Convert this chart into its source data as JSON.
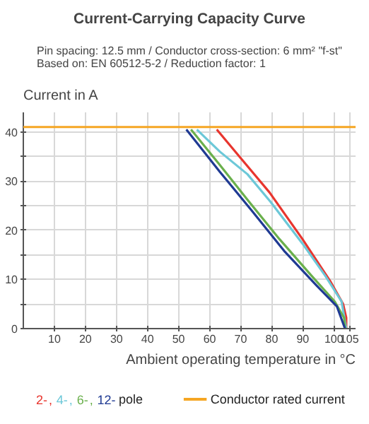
{
  "chart_data": {
    "type": "line",
    "title": "Current-Carrying Capacity Curve",
    "subtitle": "Pin spacing: 12.5 mm / Conductor cross-section: 6 mm² \"f-st\"\nBased on: EN 60512-5-2 / Reduction factor: 1",
    "xlabel": "Ambient operating temperature in °C",
    "ylabel": "Current in A",
    "annotations": [
      "pole",
      ","
    ],
    "series": [
      {
        "name": "2-",
        "color": "#e8352e",
        "x": [
          62.3,
          69.2,
          79.3,
          89.9,
          98.8,
          103,
          104,
          104
        ],
        "values": [
          40.5,
          35.3,
          27.7,
          18.2,
          9.7,
          5,
          2.2,
          0
        ]
      },
      {
        "name": "4-",
        "color": "#6cc8d8",
        "x": [
          55.9,
          63.3,
          72.2,
          79.6,
          89.9,
          97.3,
          102.5,
          104
        ],
        "values": [
          40.5,
          36,
          31.4,
          25.8,
          17.3,
          10.7,
          5.5,
          0
        ]
      },
      {
        "name": "6-",
        "color": "#6ab04c",
        "x": [
          54,
          63.3,
          72.2,
          82.5,
          92.9,
          100.3,
          103.3,
          103.6
        ],
        "values": [
          40.5,
          33.3,
          26.2,
          18.2,
          10.7,
          5.5,
          2.2,
          0
        ]
      },
      {
        "name": "12-",
        "color": "#1f3a93",
        "x": [
          52.5,
          63.3,
          73.7,
          84,
          94.4,
          101,
          103.6
        ],
        "values": [
          40.5,
          31.9,
          23.9,
          15.8,
          8.8,
          4.5,
          0
        ]
      }
    ],
    "ref_lines": [
      {
        "axis": "y",
        "value": 41,
        "label": "Conductor rated current",
        "color": "#f5a623"
      }
    ],
    "xlim": [
      0,
      107
    ],
    "ylim": [
      0,
      44
    ],
    "xticks": [
      10,
      20,
      30,
      40,
      50,
      60,
      70,
      80,
      90,
      100,
      105
    ],
    "yticks": [
      0,
      {
        "value": 5,
        "label": null
      },
      10,
      {
        "value": 15,
        "label": null
      },
      20,
      {
        "value": 25,
        "label": null
      },
      30,
      {
        "value": 35,
        "label": null
      },
      40
    ],
    "grid": true,
    "legend": "bottom",
    "marker": "none",
    "line_style": "solid"
  }
}
